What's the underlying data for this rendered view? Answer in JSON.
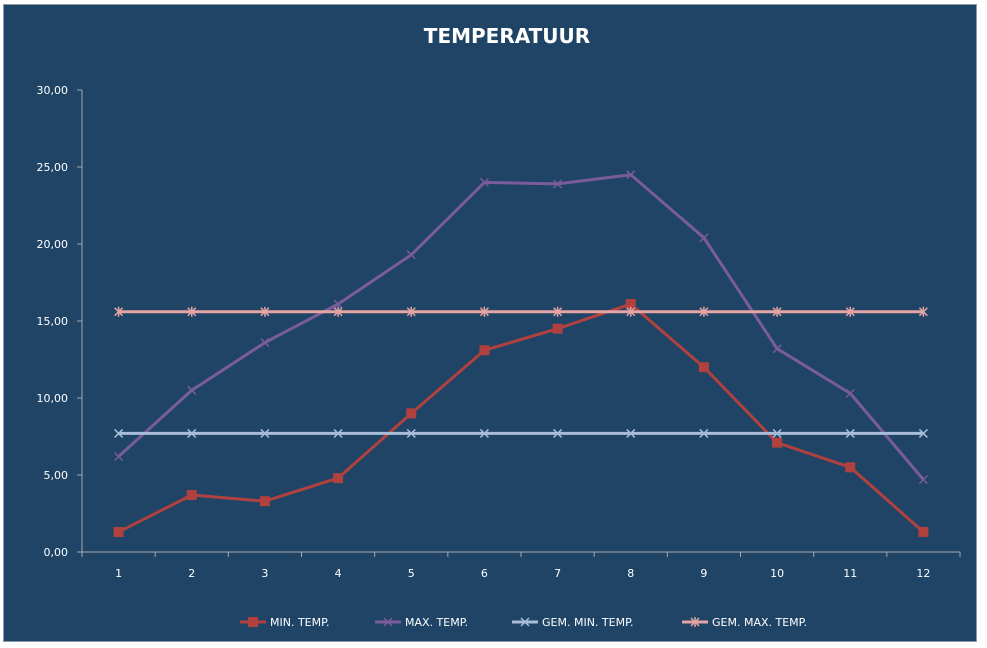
{
  "chart_data": {
    "type": "line",
    "title": "TEMPERATUUR",
    "xlabel": "",
    "ylabel": "",
    "categories": [
      "1",
      "2",
      "3",
      "4",
      "5",
      "6",
      "7",
      "8",
      "9",
      "10",
      "11",
      "12"
    ],
    "ylim": [
      0,
      30
    ],
    "yticks": [
      "0,00",
      "5,00",
      "10,00",
      "15,00",
      "20,00",
      "25,00",
      "30,00"
    ],
    "grid": false,
    "legend_position": "bottom",
    "series": [
      {
        "name": "MIN. TEMP.",
        "color": "#b0413e",
        "marker": "square",
        "values": [
          1.3,
          3.7,
          3.3,
          4.8,
          9.0,
          13.1,
          14.5,
          16.1,
          12.0,
          7.1,
          5.5,
          1.3
        ]
      },
      {
        "name": "MAX. TEMP.",
        "color": "#7a5c9a",
        "marker": "x",
        "values": [
          6.2,
          10.5,
          13.6,
          16.1,
          19.3,
          24.0,
          23.9,
          24.5,
          20.4,
          13.2,
          10.3,
          4.7
        ]
      },
      {
        "name": "GEM. MIN. TEMP.",
        "color": "#a9bcd9",
        "marker": "x",
        "values": [
          7.7,
          7.7,
          7.7,
          7.7,
          7.7,
          7.7,
          7.7,
          7.7,
          7.7,
          7.7,
          7.7,
          7.7
        ]
      },
      {
        "name": "GEM. MAX. TEMP.",
        "color": "#e6a5a5",
        "marker": "star",
        "values": [
          15.6,
          15.6,
          15.6,
          15.6,
          15.6,
          15.6,
          15.6,
          15.6,
          15.6,
          15.6,
          15.6,
          15.6
        ]
      }
    ]
  },
  "colors": {
    "background": "#1f4466",
    "axis": "#a0a8b4",
    "text": "#ffffff"
  }
}
